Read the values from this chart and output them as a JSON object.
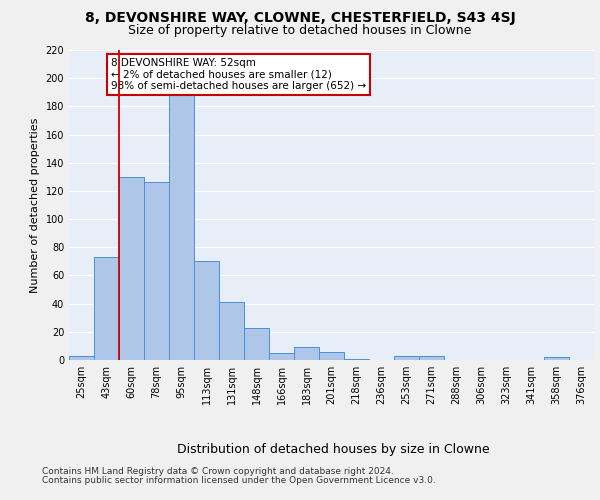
{
  "title1": "8, DEVONSHIRE WAY, CLOWNE, CHESTERFIELD, S43 4SJ",
  "title2": "Size of property relative to detached houses in Clowne",
  "xlabel": "Distribution of detached houses by size in Clowne",
  "ylabel": "Number of detached properties",
  "categories": [
    "25sqm",
    "43sqm",
    "60sqm",
    "78sqm",
    "95sqm",
    "113sqm",
    "131sqm",
    "148sqm",
    "166sqm",
    "183sqm",
    "201sqm",
    "218sqm",
    "236sqm",
    "253sqm",
    "271sqm",
    "288sqm",
    "306sqm",
    "323sqm",
    "341sqm",
    "358sqm",
    "376sqm"
  ],
  "values": [
    3,
    73,
    130,
    126,
    191,
    70,
    41,
    23,
    5,
    9,
    6,
    1,
    0,
    3,
    3,
    0,
    0,
    0,
    0,
    2,
    0
  ],
  "bar_color": "#aec6e8",
  "bar_edge_color": "#4a90d9",
  "vline_x_index": 1,
  "vline_color": "#cc0000",
  "ylim": [
    0,
    220
  ],
  "yticks": [
    0,
    20,
    40,
    60,
    80,
    100,
    120,
    140,
    160,
    180,
    200,
    220
  ],
  "annotation_text": "8 DEVONSHIRE WAY: 52sqm\n← 2% of detached houses are smaller (12)\n98% of semi-detached houses are larger (652) →",
  "annotation_box_color": "#ffffff",
  "annotation_box_edge": "#cc0000",
  "footer1": "Contains HM Land Registry data © Crown copyright and database right 2024.",
  "footer2": "Contains public sector information licensed under the Open Government Licence v3.0.",
  "bg_color": "#e8eef8",
  "grid_color": "#ffffff",
  "title1_fontsize": 10,
  "title2_fontsize": 9,
  "xlabel_fontsize": 9,
  "ylabel_fontsize": 8,
  "tick_fontsize": 7,
  "footer_fontsize": 6.5,
  "fig_facecolor": "#f0f0f0"
}
